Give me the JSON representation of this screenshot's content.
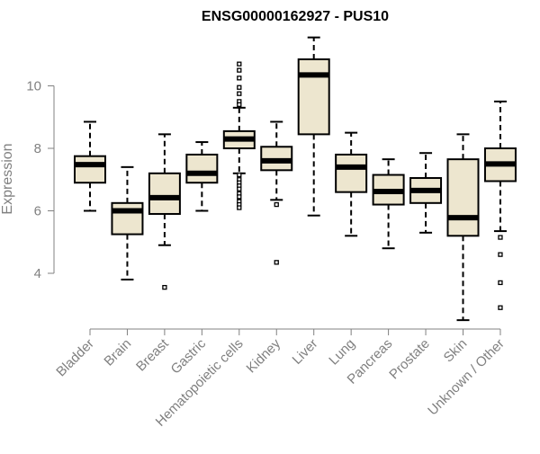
{
  "chart_data": {
    "type": "boxplot",
    "title": "ENSG00000162927 - PUS10",
    "ylabel": "Expression",
    "xlabel": "",
    "ylim": [
      2.3,
      11.9
    ],
    "yticks": [
      4,
      6,
      8,
      10
    ],
    "grid": false,
    "legend": "none",
    "colors": {
      "box_fill": "#ede6cf",
      "box_stroke": "#000000",
      "axis": "#808080",
      "title": "#000000"
    },
    "categories": [
      "Bladder",
      "Brain",
      "Breast",
      "Gastric",
      "Hematopoietic cells",
      "Kidney",
      "Liver",
      "Lung",
      "Pancreas",
      "Prostate",
      "Skin",
      "Unknown / Other"
    ],
    "boxes": [
      {
        "category": "Bladder",
        "whisker_low": 6.0,
        "q1": 6.9,
        "median": 7.48,
        "q3": 7.75,
        "whisker_high": 8.85,
        "outliers": []
      },
      {
        "category": "Brain",
        "whisker_low": 3.8,
        "q1": 5.25,
        "median": 6.0,
        "q3": 6.25,
        "whisker_high": 7.4,
        "outliers": []
      },
      {
        "category": "Breast",
        "whisker_low": 4.9,
        "q1": 5.9,
        "median": 6.42,
        "q3": 7.2,
        "whisker_high": 8.45,
        "outliers": [
          3.55
        ]
      },
      {
        "category": "Gastric",
        "whisker_low": 6.0,
        "q1": 6.9,
        "median": 7.2,
        "q3": 7.8,
        "whisker_high": 8.2,
        "outliers": []
      },
      {
        "category": "Hematopoietic cells",
        "whisker_low": 7.2,
        "q1": 8.0,
        "median": 8.3,
        "q3": 8.55,
        "whisker_high": 9.3,
        "outliers": [
          10.7,
          10.5,
          10.25,
          9.95,
          9.75,
          9.5,
          9.4,
          7.15,
          7.0,
          6.9,
          6.8,
          6.7,
          6.55,
          6.45,
          6.3,
          6.2,
          6.1
        ]
      },
      {
        "category": "Kidney",
        "whisker_low": 6.35,
        "q1": 7.3,
        "median": 7.6,
        "q3": 8.05,
        "whisker_high": 8.85,
        "outliers": [
          6.2,
          4.35
        ]
      },
      {
        "category": "Liver",
        "whisker_low": 5.85,
        "q1": 8.45,
        "median": 10.35,
        "q3": 10.85,
        "whisker_high": 11.55,
        "outliers": []
      },
      {
        "category": "Lung",
        "whisker_low": 5.2,
        "q1": 6.6,
        "median": 7.4,
        "q3": 7.8,
        "whisker_high": 8.5,
        "outliers": []
      },
      {
        "category": "Pancreas",
        "whisker_low": 4.8,
        "q1": 6.2,
        "median": 6.62,
        "q3": 7.15,
        "whisker_high": 7.65,
        "outliers": []
      },
      {
        "category": "Prostate",
        "whisker_low": 5.3,
        "q1": 6.25,
        "median": 6.65,
        "q3": 7.05,
        "whisker_high": 7.85,
        "outliers": []
      },
      {
        "category": "Skin",
        "whisker_low": 2.5,
        "q1": 5.2,
        "median": 5.78,
        "q3": 7.65,
        "whisker_high": 8.45,
        "outliers": []
      },
      {
        "category": "Unknown / Other",
        "whisker_low": 5.35,
        "q1": 6.95,
        "median": 7.5,
        "q3": 8.0,
        "whisker_high": 9.5,
        "outliers": [
          5.15,
          4.6,
          3.7,
          2.9
        ]
      }
    ]
  }
}
